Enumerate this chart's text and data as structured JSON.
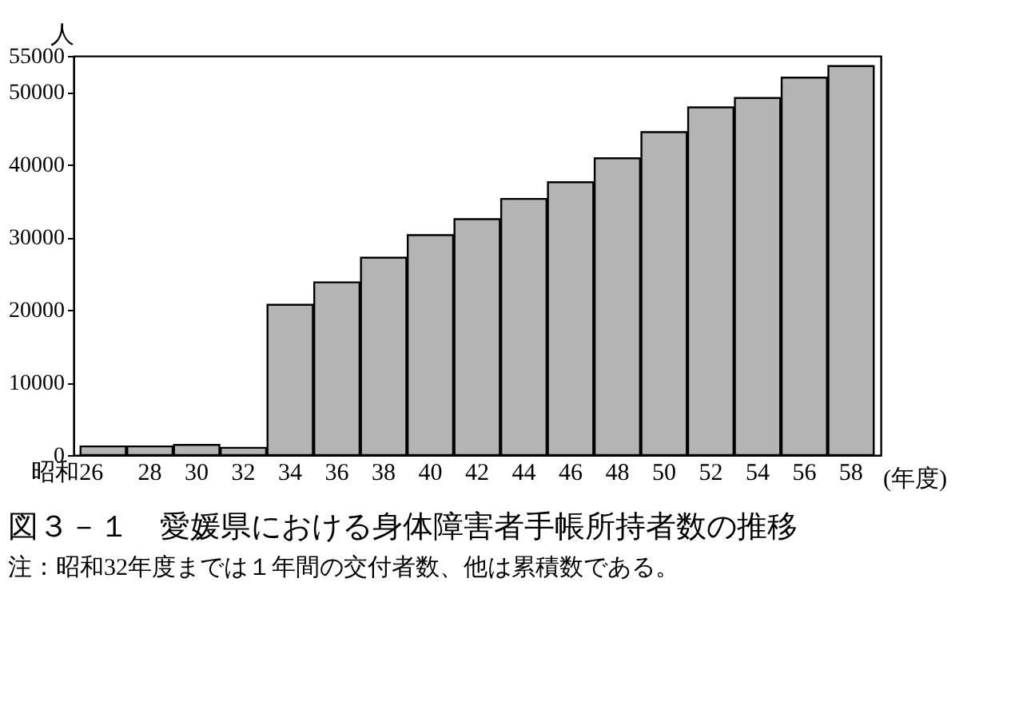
{
  "chart_data": {
    "type": "bar",
    "title": "図３－１　愛媛県における身体障害者手帳所持者数の推移",
    "annotations": [
      "注：昭和32年度までは１年間の交付者数、他は累積数である。"
    ],
    "xlabel": "(年度)",
    "ylabel": "人",
    "categories": [
      "昭和26",
      "28",
      "30",
      "32",
      "34",
      "36",
      "38",
      "40",
      "42",
      "44",
      "46",
      "48",
      "50",
      "52",
      "54",
      "56",
      "58"
    ],
    "values": [
      1200,
      1200,
      1400,
      1000,
      20700,
      23800,
      27200,
      30300,
      32500,
      35300,
      37600,
      40900,
      44500,
      47900,
      49200,
      52000,
      53600
    ],
    "color": "#b4b4b4",
    "ylim": [
      0,
      55000
    ],
    "yticks": [
      0,
      10000,
      20000,
      30000,
      40000,
      50000,
      55000
    ],
    "grid": false
  }
}
